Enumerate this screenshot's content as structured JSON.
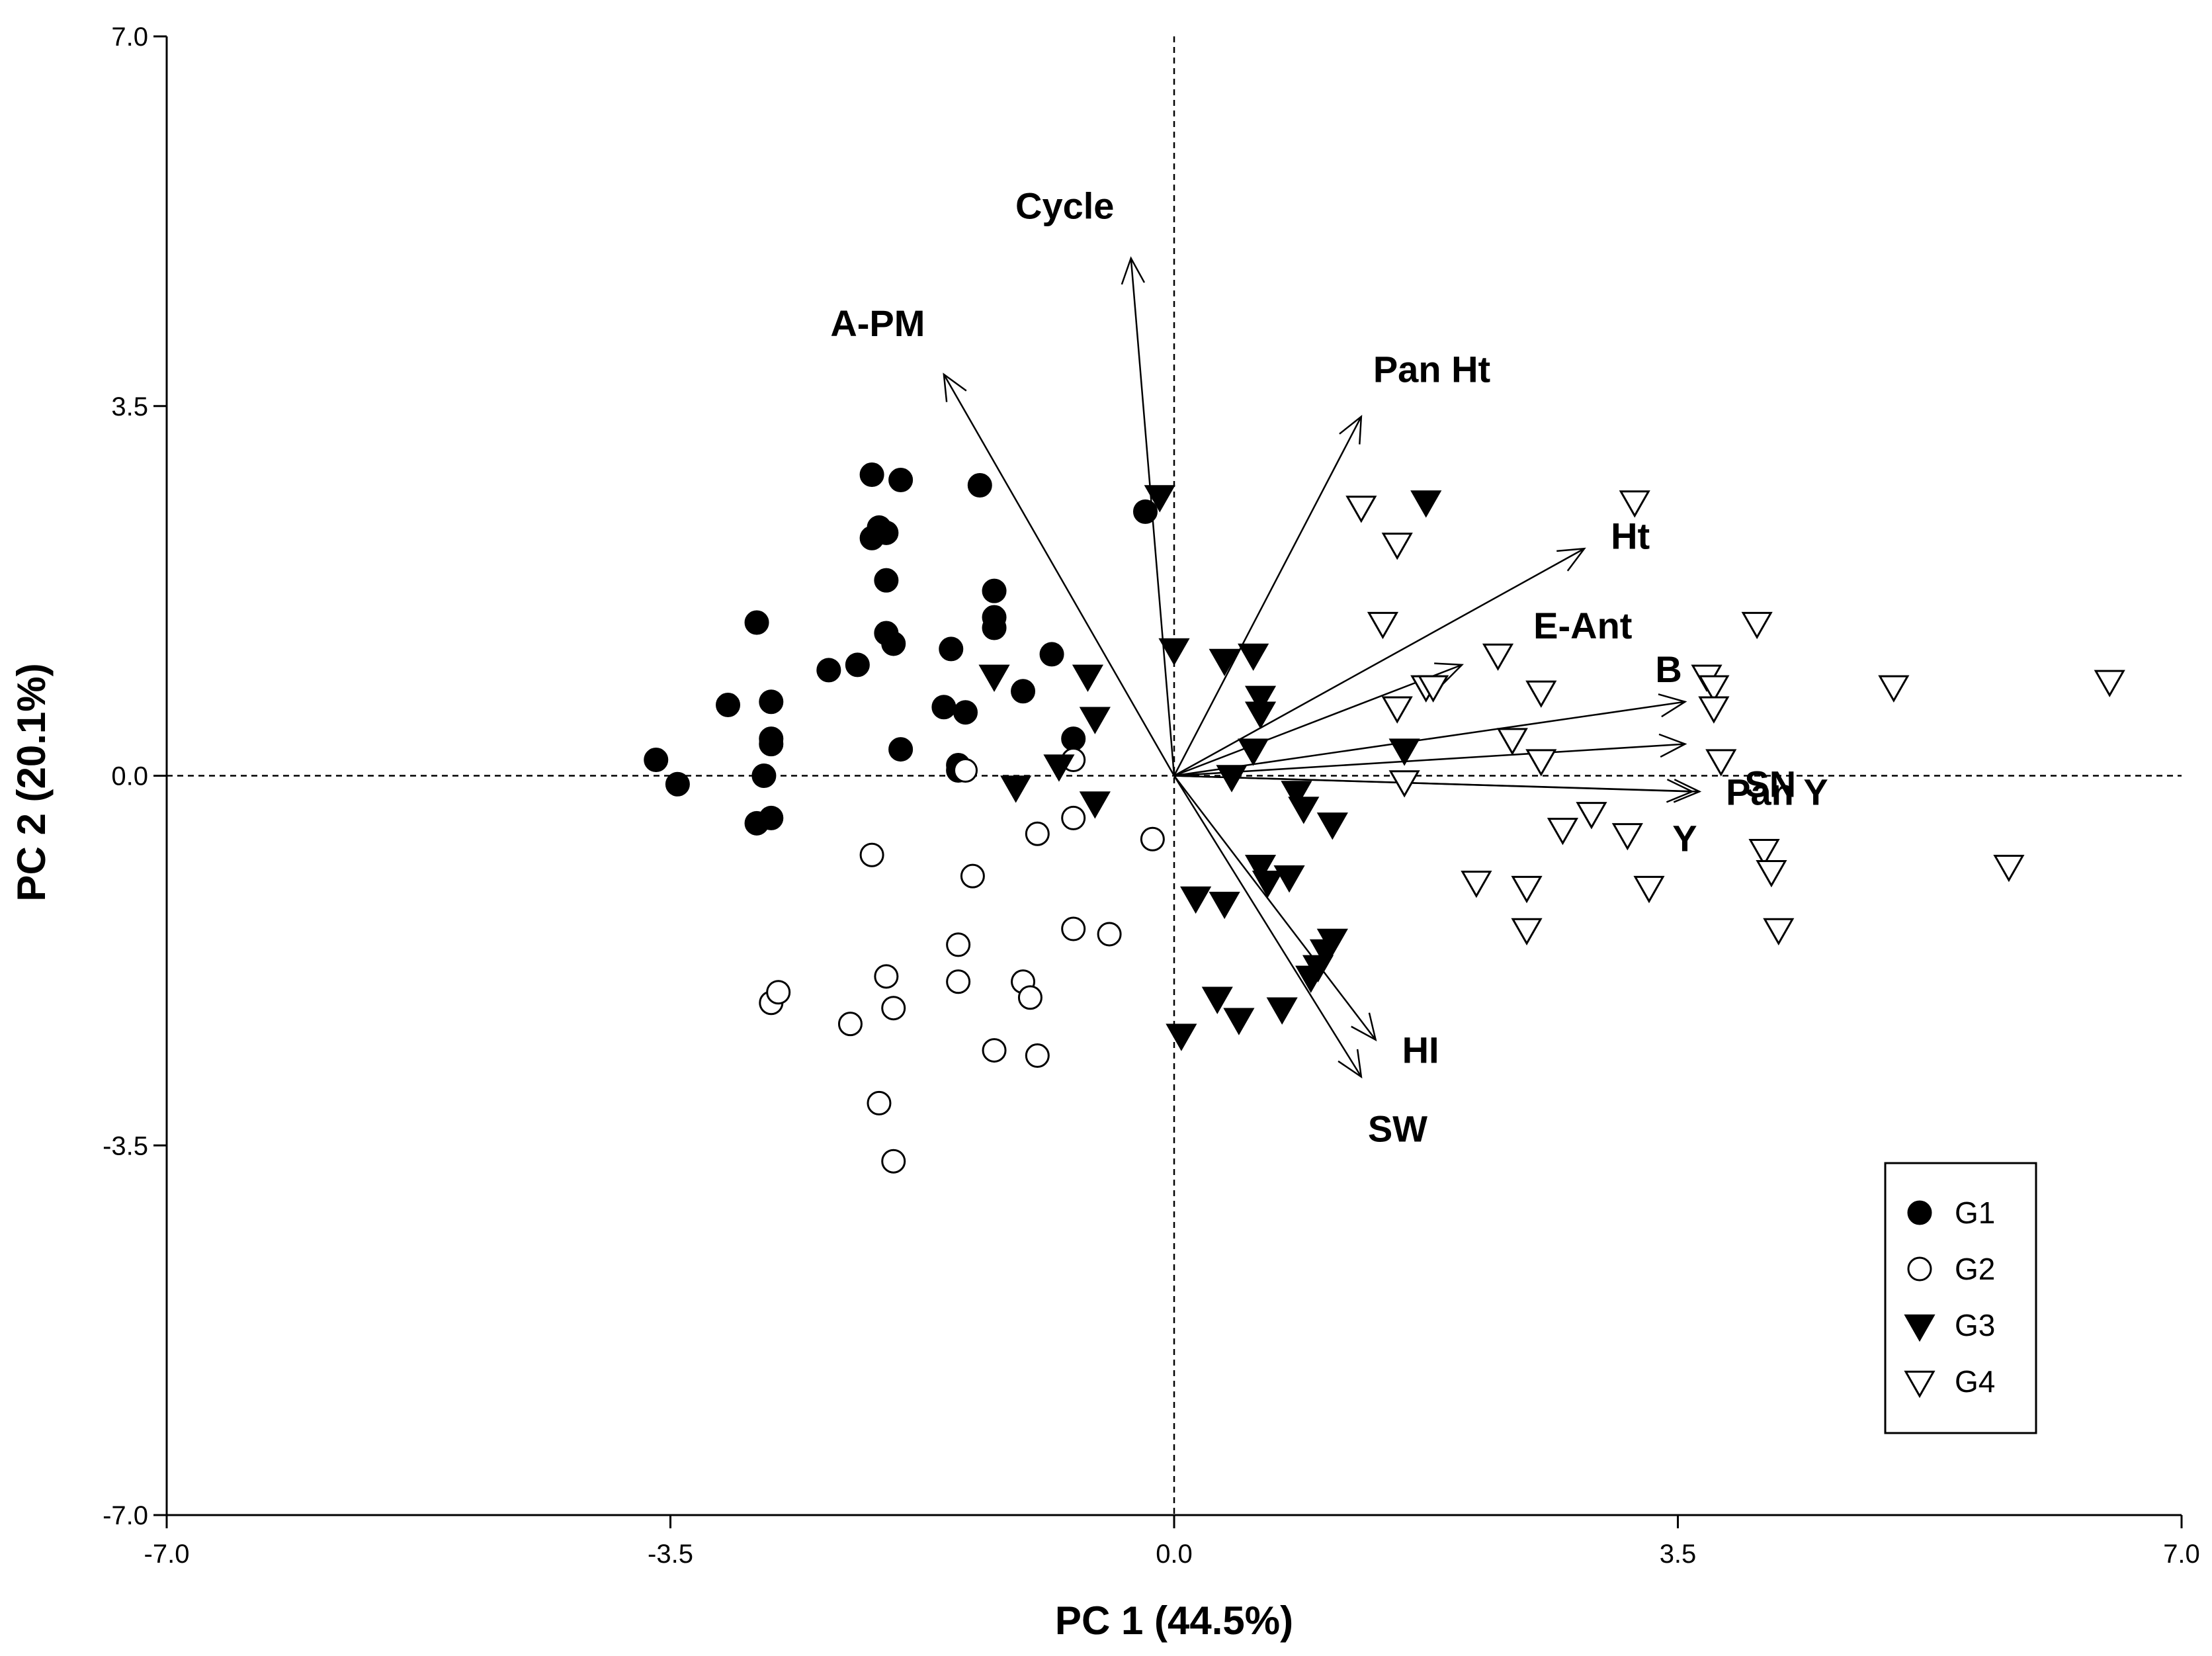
{
  "chart_data": {
    "type": "scatter",
    "subtype": "pca-biplot",
    "xlabel": "PC 1 (44.5%)",
    "ylabel": "PC 2 (20.1%)",
    "xlim": [
      -7.0,
      7.0
    ],
    "ylim": [
      -7.0,
      7.0
    ],
    "xticks": [
      -7.0,
      -3.5,
      0.0,
      3.5,
      7.0
    ],
    "yticks": [
      -7.0,
      -3.5,
      0.0,
      3.5,
      7.0
    ],
    "xtick_labels": [
      "-7.0",
      "-3.5",
      "0.0",
      "3.5",
      "7.0"
    ],
    "ytick_labels": [
      "-7.0",
      "-3.5",
      "0.0",
      "3.5",
      "7.0"
    ],
    "reference_lines": {
      "x": 0,
      "y": 0,
      "style": "dashed"
    },
    "legend_position": "bottom-right",
    "series": [
      {
        "name": "G1",
        "marker": "circle",
        "filled": true,
        "points": [
          [
            -3.6,
            0.15
          ],
          [
            -3.45,
            -0.08
          ],
          [
            -3.1,
            0.67
          ],
          [
            -2.9,
            1.45
          ],
          [
            -2.9,
            -0.45
          ],
          [
            -2.8,
            0.7
          ],
          [
            -2.8,
            0.3
          ],
          [
            -2.85,
            0.0
          ],
          [
            -2.8,
            0.35
          ],
          [
            -2.8,
            -0.4
          ],
          [
            -2.4,
            1.0
          ],
          [
            -2.2,
            1.05
          ],
          [
            -2.1,
            2.85
          ],
          [
            -2.1,
            2.25
          ],
          [
            -2.05,
            2.35
          ],
          [
            -2.0,
            2.3
          ],
          [
            -2.0,
            1.85
          ],
          [
            -2.0,
            1.35
          ],
          [
            -1.95,
            1.25
          ],
          [
            -1.9,
            2.8
          ],
          [
            -1.9,
            0.25
          ],
          [
            -1.6,
            0.65
          ],
          [
            -1.55,
            1.2
          ],
          [
            -1.5,
            0.1
          ],
          [
            -1.5,
            0.05
          ],
          [
            -1.45,
            0.6
          ],
          [
            -1.35,
            2.75
          ],
          [
            -1.25,
            1.75
          ],
          [
            -1.25,
            1.4
          ],
          [
            -1.25,
            1.5
          ],
          [
            -1.05,
            0.8
          ],
          [
            -0.85,
            1.15
          ],
          [
            -0.7,
            0.35
          ],
          [
            -0.2,
            2.5
          ]
        ]
      },
      {
        "name": "G2",
        "marker": "circle",
        "filled": false,
        "points": [
          [
            -2.8,
            -2.15
          ],
          [
            -2.75,
            -2.05
          ],
          [
            -2.25,
            -2.35
          ],
          [
            -2.1,
            -0.75
          ],
          [
            -2.05,
            -3.1
          ],
          [
            -2.0,
            -1.9
          ],
          [
            -1.95,
            -2.2
          ],
          [
            -1.95,
            -3.65
          ],
          [
            -1.5,
            -1.95
          ],
          [
            -1.5,
            -1.6
          ],
          [
            -1.45,
            0.05
          ],
          [
            -1.4,
            -0.95
          ],
          [
            -1.25,
            -2.6
          ],
          [
            -1.05,
            -1.95
          ],
          [
            -1.0,
            -2.1
          ],
          [
            -0.95,
            -0.55
          ],
          [
            -0.95,
            -2.65
          ],
          [
            -0.7,
            0.15
          ],
          [
            -0.7,
            -0.4
          ],
          [
            -0.7,
            -1.45
          ],
          [
            -0.45,
            -1.5
          ],
          [
            -0.15,
            -0.6
          ]
        ]
      },
      {
        "name": "G3",
        "marker": "triangle-down",
        "filled": true,
        "points": [
          [
            -1.25,
            0.95
          ],
          [
            -1.1,
            -0.1
          ],
          [
            -0.8,
            0.1
          ],
          [
            -0.6,
            0.95
          ],
          [
            -0.55,
            0.55
          ],
          [
            -0.55,
            -0.25
          ],
          [
            -0.1,
            2.65
          ],
          [
            0.0,
            1.2
          ],
          [
            0.05,
            -2.45
          ],
          [
            0.15,
            -1.15
          ],
          [
            0.3,
            -2.1
          ],
          [
            0.35,
            -1.2
          ],
          [
            0.45,
            -2.3
          ],
          [
            0.55,
            1.15
          ],
          [
            0.55,
            0.25
          ],
          [
            0.6,
            0.75
          ],
          [
            0.6,
            -0.85
          ],
          [
            0.65,
            -1.0
          ],
          [
            0.75,
            -2.2
          ],
          [
            0.8,
            -0.95
          ],
          [
            0.85,
            -0.15
          ],
          [
            0.9,
            -0.3
          ],
          [
            0.95,
            -1.9
          ],
          [
            1.0,
            -1.8
          ],
          [
            1.05,
            -1.65
          ],
          [
            1.1,
            -0.45
          ],
          [
            1.1,
            -1.55
          ],
          [
            1.6,
            0.25
          ],
          [
            1.75,
            2.6
          ],
          [
            0.35,
            1.1
          ],
          [
            0.4,
            0.0
          ],
          [
            0.6,
            0.6
          ]
        ]
      },
      {
        "name": "G4",
        "marker": "triangle-down",
        "filled": false,
        "points": [
          [
            1.3,
            2.55
          ],
          [
            1.45,
            1.45
          ],
          [
            1.55,
            2.2
          ],
          [
            1.55,
            0.65
          ],
          [
            1.6,
            -0.05
          ],
          [
            1.75,
            0.85
          ],
          [
            1.8,
            0.85
          ],
          [
            2.1,
            -1.0
          ],
          [
            2.25,
            1.15
          ],
          [
            2.35,
            0.35
          ],
          [
            2.45,
            -1.45
          ],
          [
            2.45,
            -1.05
          ],
          [
            2.55,
            0.8
          ],
          [
            2.55,
            0.15
          ],
          [
            2.7,
            -0.5
          ],
          [
            2.9,
            -0.35
          ],
          [
            3.15,
            -0.55
          ],
          [
            3.3,
            -1.05
          ],
          [
            3.2,
            2.6
          ],
          [
            3.7,
            0.95
          ],
          [
            3.75,
            0.85
          ],
          [
            3.75,
            0.65
          ],
          [
            3.8,
            0.15
          ],
          [
            4.05,
            1.45
          ],
          [
            4.1,
            -0.7
          ],
          [
            4.15,
            -0.9
          ],
          [
            4.2,
            -1.45
          ],
          [
            5.0,
            0.85
          ],
          [
            5.8,
            -0.85
          ],
          [
            6.5,
            0.9
          ]
        ]
      }
    ],
    "loadings": [
      {
        "label": "Cycle",
        "x": -0.3,
        "y": 4.9
      },
      {
        "label": "A-PM",
        "x": -1.6,
        "y": 3.8
      },
      {
        "label": "Pan Ht",
        "x": 1.3,
        "y": 3.4
      },
      {
        "label": "Ht",
        "x": 2.85,
        "y": 2.15
      },
      {
        "label": "E-Ant",
        "x": 2.0,
        "y": 1.05
      },
      {
        "label": "B",
        "x": 3.55,
        "y": 0.7
      },
      {
        "label": "SN",
        "x": 3.55,
        "y": 0.3
      },
      {
        "label": "Pan Y",
        "x": 3.65,
        "y": -0.15
      },
      {
        "label": "Y",
        "x": 3.6,
        "y": -0.15
      },
      {
        "label": "HI",
        "x": 1.4,
        "y": -2.5
      },
      {
        "label": "SW",
        "x": 1.3,
        "y": -2.85
      }
    ]
  }
}
